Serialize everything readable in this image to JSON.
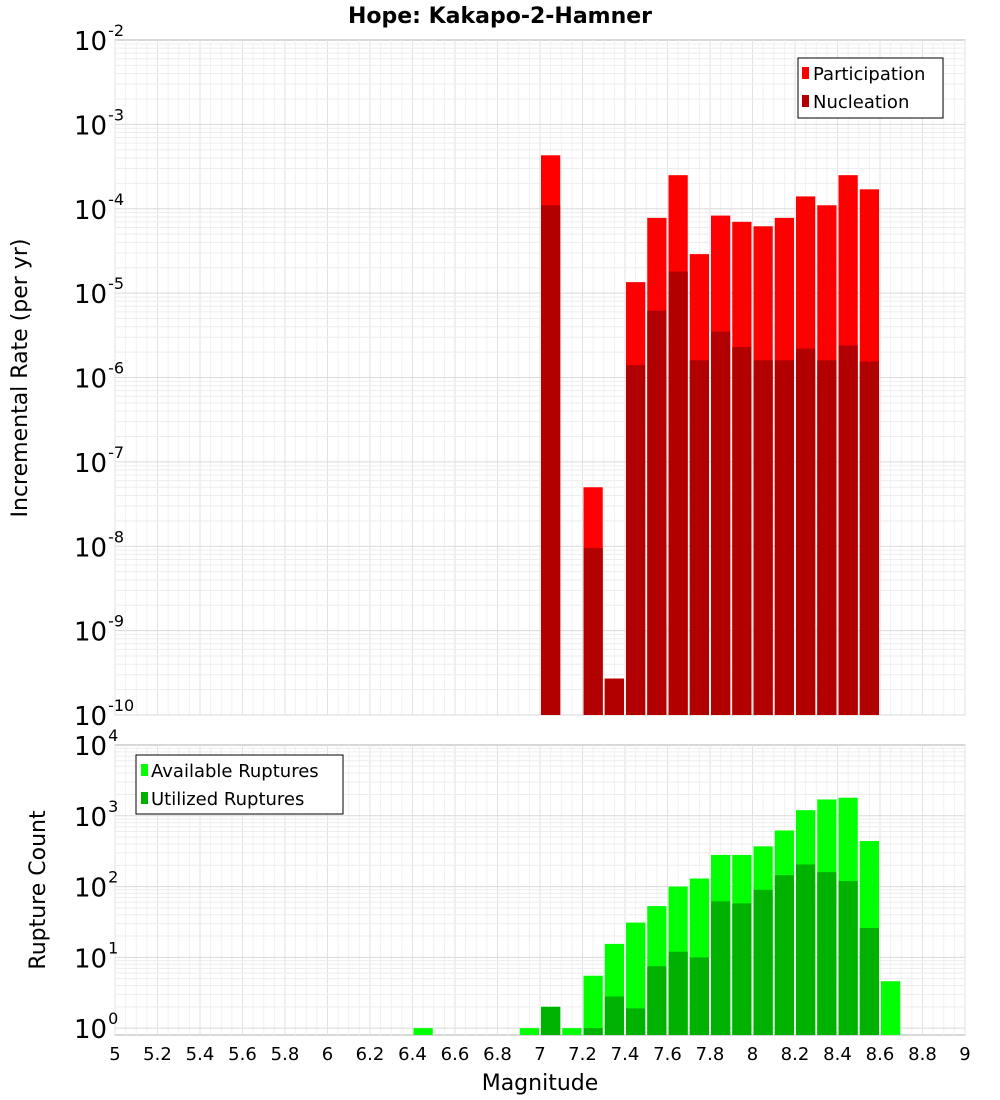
{
  "title": "Hope: Kakapo-2-Hamner",
  "colors": {
    "participation": "#ff0000",
    "nucleation": "#b20000",
    "available": "#00ff00",
    "utilized": "#00b200"
  },
  "chart_data": [
    {
      "type": "bar",
      "scale": "log",
      "xlabel": "Magnitude",
      "ylabel": "Incremental Rate (per yr)",
      "xlim": [
        5,
        9
      ],
      "ylim": [
        1e-10,
        0.01
      ],
      "legend_position": "top-right",
      "grid": true,
      "x": [
        7.05,
        7.15,
        7.25,
        7.35,
        7.45,
        7.55,
        7.65,
        7.75,
        7.85,
        7.95,
        8.05,
        8.15,
        8.25,
        8.35,
        8.45,
        8.55
      ],
      "series": [
        {
          "name": "Participation",
          "values": [
            0.00043,
            0,
            5e-08,
            2.7e-10,
            1.35e-05,
            7.8e-05,
            0.00025,
            2.9e-05,
            8.3e-05,
            7e-05,
            6.2e-05,
            7.8e-05,
            0.00014,
            0.00011,
            0.00025,
            0.00017
          ]
        },
        {
          "name": "Nucleation",
          "values": [
            0.00011,
            0,
            9.5e-09,
            2.7e-10,
            1.4e-06,
            6.2e-06,
            1.8e-05,
            1.6e-06,
            3.5e-06,
            2.3e-06,
            1.6e-06,
            1.6e-06,
            2.2e-06,
            1.6e-06,
            2.4e-06,
            1.55e-06
          ]
        }
      ]
    },
    {
      "type": "bar",
      "scale": "log",
      "xlabel": "Magnitude",
      "ylabel": "Rupture Count",
      "xlim": [
        5,
        9
      ],
      "ylim": [
        0.8,
        10000
      ],
      "legend_position": "top-left",
      "grid": true,
      "x": [
        6.45,
        6.95,
        7.05,
        7.15,
        7.25,
        7.35,
        7.45,
        7.55,
        7.65,
        7.75,
        7.85,
        7.95,
        8.05,
        8.15,
        8.25,
        8.35,
        8.45,
        8.55,
        8.65
      ],
      "series": [
        {
          "name": "Available Ruptures",
          "values": [
            1,
            1,
            2,
            1,
            5.5,
            15.5,
            31,
            53,
            100,
            130,
            280,
            280,
            370,
            620,
            1200,
            1700,
            1800,
            440,
            4.6
          ]
        },
        {
          "name": "Utilized Ruptures",
          "values": [
            0,
            0,
            2,
            0,
            1,
            2.8,
            1.9,
            7.5,
            12,
            10,
            62,
            58,
            90,
            145,
            205,
            160,
            120,
            26,
            0
          ]
        }
      ]
    }
  ],
  "xticks": [
    "5",
    "5.2",
    "5.4",
    "5.6",
    "5.8",
    "6",
    "6.2",
    "6.4",
    "6.6",
    "6.8",
    "7",
    "7.2",
    "7.4",
    "7.6",
    "7.8",
    "8",
    "8.2",
    "8.4",
    "8.6",
    "8.8",
    "9"
  ],
  "top_yticks": [
    {
      "base": "10",
      "exp": "-10"
    },
    {
      "base": "10",
      "exp": "-9"
    },
    {
      "base": "10",
      "exp": "-8"
    },
    {
      "base": "10",
      "exp": "-7"
    },
    {
      "base": "10",
      "exp": "-6"
    },
    {
      "base": "10",
      "exp": "-5"
    },
    {
      "base": "10",
      "exp": "-4"
    },
    {
      "base": "10",
      "exp": "-3"
    },
    {
      "base": "10",
      "exp": "-2"
    }
  ],
  "bottom_yticks": [
    {
      "base": "10",
      "exp": "0"
    },
    {
      "base": "10",
      "exp": "1"
    },
    {
      "base": "10",
      "exp": "2"
    },
    {
      "base": "10",
      "exp": "3"
    },
    {
      "base": "10",
      "exp": "4"
    }
  ]
}
